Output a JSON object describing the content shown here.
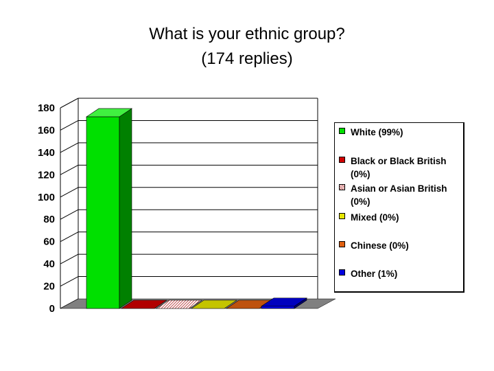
{
  "title": {
    "line1": "What is your ethnic group?",
    "line2": "(174 replies)"
  },
  "chart_data": {
    "type": "bar",
    "view": "3d",
    "categories": [
      "White (99%)",
      "Black or Black British (0%)",
      "Asian or Asian British (0%)",
      "Mixed (0%)",
      "Chinese (0%)",
      "Other (1%)"
    ],
    "series": [
      {
        "values": [
          172,
          0,
          0,
          0,
          0,
          2
        ]
      }
    ],
    "ylim": [
      0,
      180
    ],
    "yticks": [
      "0",
      "20",
      "40",
      "60",
      "80",
      "100",
      "120",
      "140",
      "160",
      "180"
    ],
    "legend_position": "right",
    "grid": true
  },
  "legend": {
    "items": [
      {
        "label": "White (99%)",
        "color": "#00e000",
        "pattern": "solid"
      },
      {
        "label": "Black or Black British (0%)",
        "color": "#d00000",
        "pattern": "solid"
      },
      {
        "label": "Asian or Asian British (0%)",
        "color": "#e8a0a0",
        "pattern": "hatched"
      },
      {
        "label": "Mixed (0%)",
        "color": "#e6e600",
        "pattern": "solid"
      },
      {
        "label": "Chinese (0%)",
        "color": "#e06010",
        "pattern": "solid"
      },
      {
        "label": "Other (1%)",
        "color": "#0000e0",
        "pattern": "solid"
      }
    ]
  },
  "colors": {
    "floor": "#808080",
    "bar_side_white": "#008000",
    "bar_top_white": "#40f040"
  }
}
